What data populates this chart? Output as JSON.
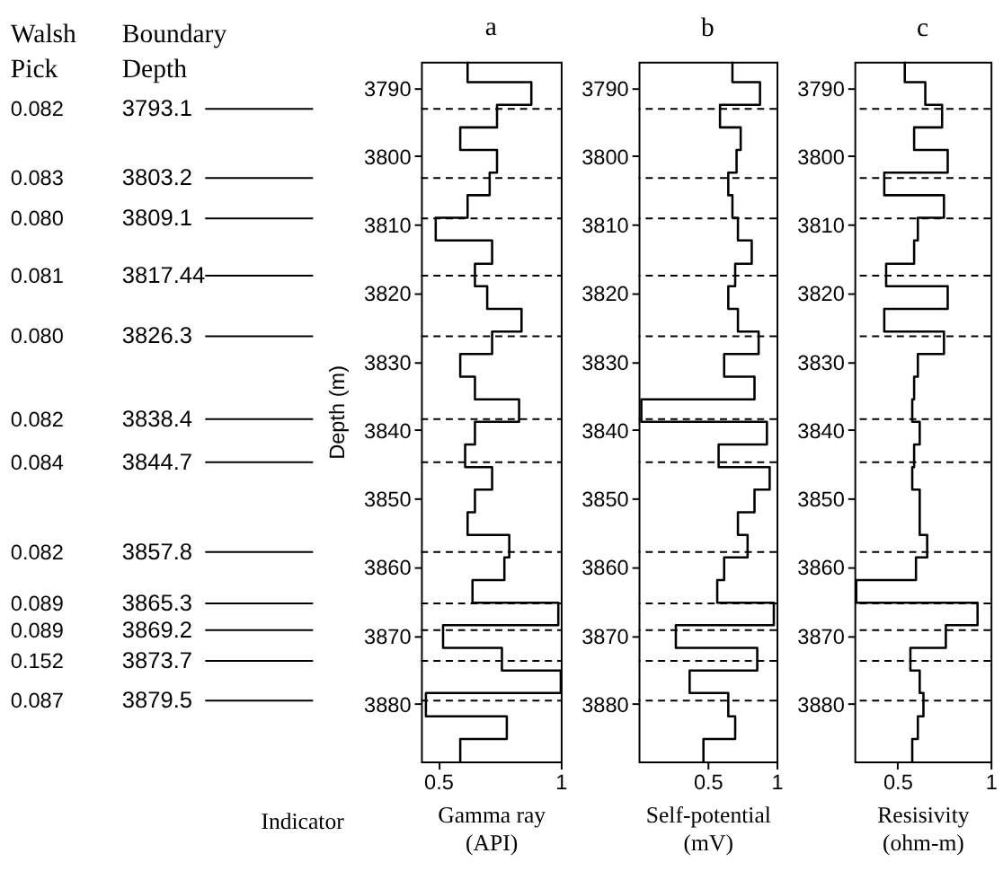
{
  "chart_data": [
    {
      "type": "step",
      "orientation": "horizontal",
      "title": "a",
      "xlabel": "Gamma ray\n(API)",
      "ylabel": "Depth (m)",
      "color": "#000000",
      "x": [
        3786.2,
        3789.2,
        3792.5,
        3795.8,
        3799.1,
        3802.4,
        3805.7,
        3809.0,
        3812.3,
        3815.7,
        3819.0,
        3822.3,
        3825.6,
        3828.9,
        3832.2,
        3835.5,
        3838.8,
        3842.1,
        3845.4,
        3848.7,
        3852.0,
        3855.3,
        3858.6,
        3861.9,
        3865.2,
        3868.5,
        3871.8,
        3875.1,
        3878.4,
        3881.8,
        3885.1,
        3888.4
      ],
      "values": [
        0.62,
        0.88,
        0.74,
        0.59,
        0.74,
        0.71,
        0.62,
        0.49,
        0.72,
        0.65,
        0.7,
        0.84,
        0.72,
        0.59,
        0.65,
        0.83,
        0.65,
        0.61,
        0.72,
        0.65,
        0.62,
        0.79,
        0.77,
        0.64,
        0.99,
        0.52,
        0.76,
        1.0,
        0.45,
        0.78,
        0.59,
        0.59
      ],
      "xlim": [
        0.43,
        1
      ],
      "xticks": [
        0.5,
        1
      ],
      "ylim": [
        3888.4,
        3786.2
      ],
      "yticks": [
        3790,
        3800,
        3810,
        3820,
        3830,
        3840,
        3850,
        3860,
        3870,
        3880
      ],
      "ref_lines": [
        {
          "axis": "y",
          "value": 3793.1,
          "label": "3793.1",
          "line_style": "dashed"
        },
        {
          "axis": "y",
          "value": 3803.2,
          "label": "3803.2",
          "line_style": "dashed"
        },
        {
          "axis": "y",
          "value": 3809.1,
          "label": "3809.1",
          "line_style": "dashed"
        },
        {
          "axis": "y",
          "value": 3817.44,
          "label": "3817.44",
          "line_style": "dashed"
        },
        {
          "axis": "y",
          "value": 3826.3,
          "label": "3826.3",
          "line_style": "dashed"
        },
        {
          "axis": "y",
          "value": 3838.4,
          "label": "3838.4",
          "line_style": "dashed"
        },
        {
          "axis": "y",
          "value": 3844.7,
          "label": "3844.7",
          "line_style": "dashed"
        },
        {
          "axis": "y",
          "value": 3857.8,
          "label": "3857.8",
          "line_style": "dashed"
        },
        {
          "axis": "y",
          "value": 3865.3,
          "label": "3865.3",
          "line_style": "dashed"
        },
        {
          "axis": "y",
          "value": 3869.2,
          "label": "3869.2",
          "line_style": "dashed"
        },
        {
          "axis": "y",
          "value": 3873.7,
          "label": "3873.7",
          "line_style": "dashed"
        },
        {
          "axis": "y",
          "value": 3879.5,
          "label": "3879.5",
          "line_style": "dashed"
        }
      ],
      "annotations": [
        "Walsh\nPick",
        "Boundary\nDepth",
        "0.082",
        "0.083",
        "0.080",
        "0.081",
        "0.080",
        "0.082",
        "0.084",
        "0.082",
        "0.089",
        "0.089",
        "0.152",
        "0.087",
        "Indicator"
      ]
    },
    {
      "type": "step",
      "orientation": "horizontal",
      "title": "b",
      "xlabel": "Self-potential\n(mV)",
      "color": "#000000",
      "x": [
        3786.2,
        3789.2,
        3792.5,
        3795.8,
        3799.1,
        3802.4,
        3805.7,
        3809.0,
        3812.3,
        3815.7,
        3819.0,
        3822.3,
        3825.6,
        3828.9,
        3832.2,
        3835.5,
        3838.8,
        3842.1,
        3845.4,
        3848.7,
        3852.0,
        3855.3,
        3858.6,
        3861.9,
        3865.2,
        3868.5,
        3871.8,
        3875.1,
        3878.4,
        3881.8,
        3885.1,
        3888.4
      ],
      "values": [
        0.68,
        0.88,
        0.59,
        0.74,
        0.71,
        0.65,
        0.68,
        0.72,
        0.82,
        0.7,
        0.65,
        0.72,
        0.87,
        0.62,
        0.84,
        0.02,
        0.93,
        0.58,
        0.95,
        0.84,
        0.72,
        0.79,
        0.62,
        0.57,
        0.98,
        0.27,
        0.86,
        0.37,
        0.65,
        0.7,
        0.47,
        0.47
      ],
      "xlim": [
        0,
        1
      ],
      "xticks": [
        0.5,
        1
      ],
      "ylim": [
        3888.4,
        3786.2
      ],
      "yticks": [
        3790,
        3800,
        3810,
        3820,
        3830,
        3840,
        3850,
        3860,
        3870,
        3880
      ],
      "ref_lines": [
        {
          "axis": "y",
          "value": 3793.1,
          "line_style": "dashed"
        },
        {
          "axis": "y",
          "value": 3803.2,
          "line_style": "dashed"
        },
        {
          "axis": "y",
          "value": 3809.1,
          "line_style": "dashed"
        },
        {
          "axis": "y",
          "value": 3817.44,
          "line_style": "dashed"
        },
        {
          "axis": "y",
          "value": 3826.3,
          "line_style": "dashed"
        },
        {
          "axis": "y",
          "value": 3838.4,
          "line_style": "dashed"
        },
        {
          "axis": "y",
          "value": 3844.7,
          "line_style": "dashed"
        },
        {
          "axis": "y",
          "value": 3857.8,
          "line_style": "dashed"
        },
        {
          "axis": "y",
          "value": 3865.3,
          "line_style": "dashed"
        },
        {
          "axis": "y",
          "value": 3869.2,
          "line_style": "dashed"
        },
        {
          "axis": "y",
          "value": 3873.7,
          "line_style": "dashed"
        },
        {
          "axis": "y",
          "value": 3879.5,
          "line_style": "dashed"
        }
      ]
    },
    {
      "type": "step",
      "orientation": "horizontal",
      "title": "c",
      "xlabel": "Resisivity\n(ohm-m)",
      "color": "#000000",
      "x": [
        3786.2,
        3789.2,
        3792.5,
        3795.8,
        3799.1,
        3802.4,
        3805.7,
        3809.0,
        3812.3,
        3815.7,
        3819.0,
        3822.3,
        3825.6,
        3828.9,
        3832.2,
        3835.5,
        3838.8,
        3842.1,
        3845.4,
        3848.7,
        3852.0,
        3855.3,
        3858.6,
        3861.9,
        3865.2,
        3868.5,
        3871.8,
        3875.1,
        3878.4,
        3881.8,
        3885.1,
        3888.4
      ],
      "values": [
        0.54,
        0.65,
        0.74,
        0.59,
        0.77,
        0.43,
        0.75,
        0.61,
        0.59,
        0.44,
        0.77,
        0.43,
        0.75,
        0.61,
        0.59,
        0.58,
        0.62,
        0.59,
        0.58,
        0.62,
        0.62,
        0.66,
        0.6,
        0.28,
        0.93,
        0.76,
        0.57,
        0.62,
        0.64,
        0.61,
        0.58,
        0.58
      ],
      "xlim": [
        0.27,
        1
      ],
      "xticks": [
        0.5,
        1
      ],
      "ylim": [
        3888.4,
        3786.2
      ],
      "yticks": [
        3790,
        3800,
        3810,
        3820,
        3830,
        3840,
        3850,
        3860,
        3870,
        3880
      ],
      "ref_lines": [
        {
          "axis": "y",
          "value": 3793.1,
          "line_style": "dashed"
        },
        {
          "axis": "y",
          "value": 3803.2,
          "line_style": "dashed"
        },
        {
          "axis": "y",
          "value": 3809.1,
          "line_style": "dashed"
        },
        {
          "axis": "y",
          "value": 3817.44,
          "line_style": "dashed"
        },
        {
          "axis": "y",
          "value": 3826.3,
          "line_style": "dashed"
        },
        {
          "axis": "y",
          "value": 3838.4,
          "line_style": "dashed"
        },
        {
          "axis": "y",
          "value": 3844.7,
          "line_style": "dashed"
        },
        {
          "axis": "y",
          "value": 3857.8,
          "line_style": "dashed"
        },
        {
          "axis": "y",
          "value": 3865.3,
          "line_style": "dashed"
        },
        {
          "axis": "y",
          "value": 3869.2,
          "line_style": "dashed"
        },
        {
          "axis": "y",
          "value": 3873.7,
          "line_style": "dashed"
        },
        {
          "axis": "y",
          "value": 3879.5,
          "line_style": "dashed"
        }
      ]
    }
  ]
}
